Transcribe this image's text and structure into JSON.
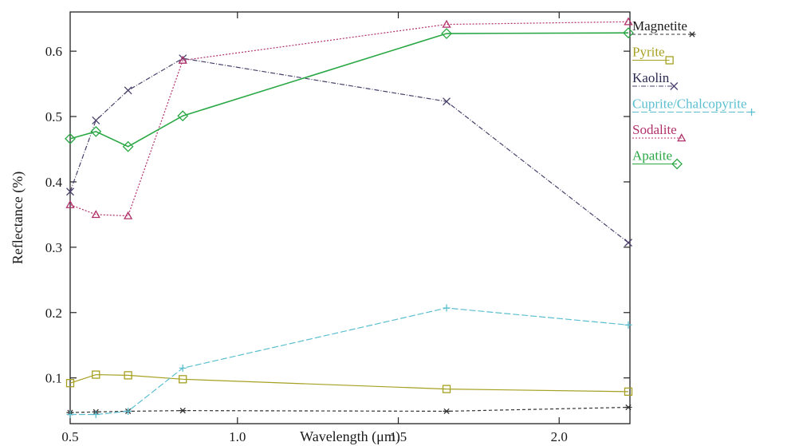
{
  "chart_data": {
    "type": "line",
    "xlabel": "Wavelength (μm)",
    "ylabel": "Reflectance (%)",
    "xlim": [
      0.48,
      2.22
    ],
    "ylim": [
      0.03,
      0.66
    ],
    "xticks": [
      1.0,
      1.5,
      2.0
    ],
    "xtick_labels": [
      "1.0",
      "1.5",
      "2.0"
    ],
    "x_edge_label": "0.5",
    "yticks": [
      0.1,
      0.2,
      0.3,
      0.4,
      0.5,
      0.6
    ],
    "ytick_labels": [
      "0.1",
      "0.2",
      "0.3",
      "0.4",
      "0.5",
      "0.6"
    ],
    "grid": false,
    "legend_position": "right",
    "x": [
      0.48,
      0.56,
      0.66,
      0.83,
      1.65,
      2.215
    ],
    "series": [
      {
        "name": "Magnetite",
        "color": "#333333",
        "marker": "asterisk",
        "dash": "4,3",
        "values": [
          0.047,
          0.048,
          0.049,
          0.05,
          0.049,
          0.055
        ]
      },
      {
        "name": "Pyrite",
        "color": "#a6a020",
        "marker": "square",
        "dash": "",
        "values": [
          0.092,
          0.105,
          0.104,
          0.098,
          0.083,
          0.079
        ]
      },
      {
        "name": "Kaolin",
        "color": "#4a3f6a",
        "marker": "x",
        "dash": "6,2,1,2",
        "values": [
          0.385,
          0.494,
          0.54,
          0.589,
          0.523,
          0.307
        ]
      },
      {
        "name": "Cuprite/Chalcopyrite",
        "color": "#5bbfd0",
        "marker": "plus",
        "dash": "8,3",
        "values": [
          0.044,
          0.044,
          0.049,
          0.115,
          0.207,
          0.181
        ]
      },
      {
        "name": "Sodalite",
        "color": "#b0306a",
        "marker": "triangle",
        "dash": "2,2",
        "values": [
          0.365,
          0.35,
          0.348,
          0.586,
          0.641,
          0.645
        ]
      },
      {
        "name": "Apatite",
        "color": "#2aa845",
        "marker": "diamond",
        "dash": "",
        "values": [
          0.466,
          0.477,
          0.454,
          0.501,
          0.627,
          0.628
        ]
      }
    ]
  }
}
